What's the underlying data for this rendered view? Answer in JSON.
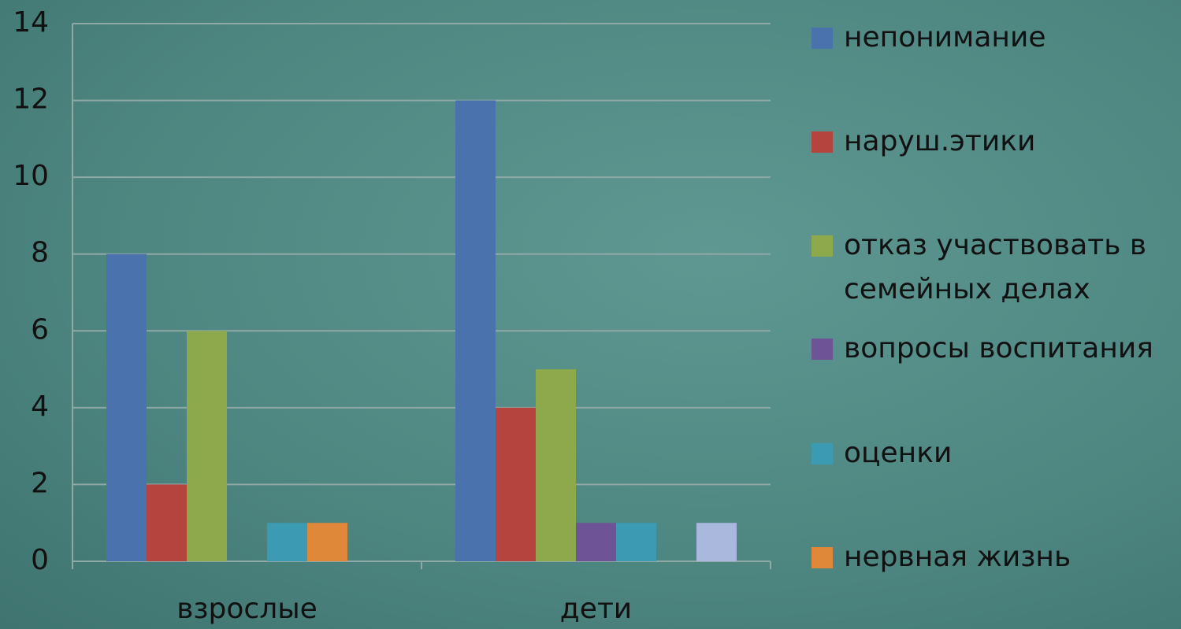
{
  "chart_data": {
    "type": "bar",
    "categories": [
      "взрослые",
      "дети"
    ],
    "series": [
      {
        "name": "непонимание",
        "color": "#4a72ad",
        "values": [
          8,
          12
        ]
      },
      {
        "name": "наруш.этики",
        "color": "#b5443f",
        "values": [
          2,
          4
        ]
      },
      {
        "name": "отказ участвовать в семейных делах",
        "color": "#8ea84c",
        "values": [
          6,
          5
        ]
      },
      {
        "name": "вопросы воспитания",
        "color": "#6e5396",
        "values": [
          0,
          1
        ]
      },
      {
        "name": "оценки",
        "color": "#3a9bb3",
        "values": [
          1,
          1
        ]
      },
      {
        "name": "нервная жизнь",
        "color": "#e0883a",
        "values": [
          1,
          0
        ]
      },
      {
        "color": "#a9b8dc",
        "values": [
          0,
          1
        ]
      }
    ],
    "ylim": [
      0,
      14
    ],
    "yticks": [
      0,
      2,
      4,
      6,
      8,
      10,
      12,
      14
    ],
    "grid": true,
    "legend": "right"
  }
}
